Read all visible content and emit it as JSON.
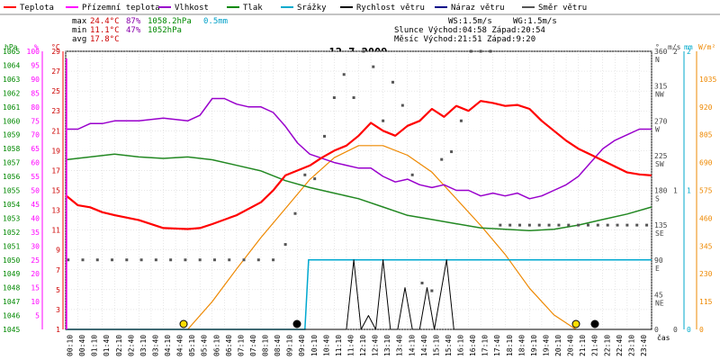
{
  "chart_data": {
    "type": "line",
    "title": "12.7.2009",
    "legend": [
      {
        "label": "Teplota",
        "color": "#ff0000"
      },
      {
        "label": "Přízemní teplota",
        "color": "#ff00ff"
      },
      {
        "label": "Vlhkost",
        "color": "#9900cc"
      },
      {
        "label": "Tlak",
        "color": "#008800"
      },
      {
        "label": "Srážky",
        "color": "#00aacc"
      },
      {
        "label": "Rychlost větru",
        "color": "#000000"
      },
      {
        "label": "Náraz větru",
        "color": "#000088"
      },
      {
        "label": "Směr větru",
        "color": "#555555"
      }
    ],
    "stats": {
      "max_label": "max",
      "max_temp": "24.4°C",
      "max_hum": "87%",
      "max_press": "1058.2hPa",
      "max_rain": "0.5mm",
      "min_label": "min",
      "min_temp": "11.1°C",
      "min_hum": "47%",
      "min_press": "1052hPa",
      "avg_label": "avg",
      "avg_temp": "17.8°C"
    },
    "wind_info": {
      "ws": "WS:1.5m/s",
      "wg": "WG:1.5m/s",
      "sun": "Slunce Východ:04:58  Západ:20:54",
      "moon": "Měsíc  Východ:21:51  Západ:9:20"
    },
    "axis_units": {
      "hpa": "hPa",
      "pct": "%",
      "degc": "°C",
      "deg": "°",
      "ms": "m/s",
      "mm": "mm",
      "wm2": "W/m²",
      "time": "čas"
    },
    "pressure_ticks": [
      "1045",
      "1046",
      "1047",
      "1048",
      "1049",
      "1050",
      "1051",
      "1052",
      "1053",
      "1054",
      "1055",
      "1056",
      "1057",
      "1058",
      "1059",
      "1060",
      "1061",
      "1062",
      "1063",
      "1064",
      "1065"
    ],
    "humidity_ticks": [
      "5",
      "10",
      "15",
      "20",
      "25",
      "30",
      "35",
      "40",
      "45",
      "50",
      "55",
      "60",
      "65",
      "70",
      "75",
      "80",
      "85",
      "90",
      "95",
      "100"
    ],
    "temp_ticks": [
      "1",
      "3",
      "5",
      "7",
      "9",
      "11",
      "13",
      "15",
      "17",
      "19",
      "21",
      "23",
      "25",
      "27",
      "29"
    ],
    "direction_ticks": [
      "0",
      "45",
      "90",
      "135",
      "180",
      "225",
      "270",
      "315",
      "360"
    ],
    "direction_labels": [
      "NE",
      "E",
      "SE",
      "S",
      "SW",
      "W",
      "NW",
      "N"
    ],
    "speed_ticks": [
      "0",
      "1",
      "2"
    ],
    "rain_ticks": [
      "0",
      "1",
      "2"
    ],
    "solar_ticks": [
      "0",
      "115",
      "230",
      "345",
      "460",
      "575",
      "690",
      "805",
      "920",
      "1035"
    ],
    "x_labels": [
      "00:10",
      "00:40",
      "01:10",
      "01:40",
      "02:10",
      "02:40",
      "03:10",
      "03:40",
      "04:10",
      "04:40",
      "05:10",
      "05:40",
      "06:10",
      "06:40",
      "07:10",
      "07:40",
      "08:10",
      "08:40",
      "09:10",
      "09:40",
      "10:10",
      "10:40",
      "11:10",
      "11:40",
      "12:10",
      "12:40",
      "13:10",
      "13:40",
      "14:10",
      "14:40",
      "15:10",
      "15:40",
      "16:10",
      "16:40",
      "17:10",
      "17:40",
      "18:10",
      "18:40",
      "19:10",
      "19:40",
      "20:10",
      "20:40",
      "21:10",
      "21:40",
      "22:10",
      "22:40",
      "23:10",
      "23:40"
    ],
    "temperature": {
      "hours": [
        0,
        0.5,
        1,
        1.5,
        2,
        3,
        4,
        5,
        5.5,
        6,
        7,
        8,
        8.5,
        9,
        9.5,
        10,
        10.5,
        11,
        11.5,
        12,
        12.5,
        13,
        13.5,
        14,
        14.5,
        15,
        15.5,
        16,
        16.5,
        17,
        17.5,
        18,
        18.5,
        19,
        19.5,
        20,
        20.5,
        21,
        21.5,
        22,
        22.5,
        23,
        23.5,
        24
      ],
      "values": [
        14.5,
        13.5,
        13.3,
        12.8,
        12.5,
        12.0,
        11.2,
        11.1,
        11.2,
        11.6,
        12.5,
        13.8,
        15,
        16.5,
        17,
        17.5,
        18.3,
        19,
        19.5,
        20.5,
        21.8,
        21,
        20.5,
        21.5,
        22,
        23.2,
        22.4,
        23.5,
        23,
        24.0,
        23.8,
        23.5,
        23.6,
        23.2,
        22,
        21,
        20,
        19.2,
        18.6,
        18,
        17.4,
        16.8,
        16.6,
        16.5
      ]
    },
    "humidity": {
      "hours": [
        0,
        0.5,
        1,
        1.5,
        2,
        3,
        4,
        5,
        5.5,
        6,
        6.5,
        7,
        7.5,
        8,
        8.5,
        9,
        9.5,
        10,
        11,
        12,
        12.5,
        13,
        13.5,
        14,
        14.5,
        15,
        15.5,
        16,
        16.5,
        17,
        17.5,
        18,
        18.5,
        19,
        19.5,
        20,
        20.5,
        21,
        21.5,
        22,
        22.5,
        23,
        23.5,
        24
      ],
      "values": [
        72,
        72,
        74,
        74,
        75,
        75,
        76,
        75,
        77,
        83,
        83,
        81,
        80,
        80,
        78,
        73,
        67,
        63,
        60,
        58,
        58,
        55,
        53,
        54,
        52,
        51,
        52,
        50,
        50,
        48,
        49,
        48,
        49,
        47,
        48,
        50,
        52,
        55,
        60,
        65,
        68,
        70,
        72,
        72
      ]
    },
    "pressure": {
      "hours": [
        0,
        1,
        2,
        3,
        4,
        5,
        6,
        7,
        8,
        9,
        10,
        11,
        12,
        13,
        14,
        15,
        16,
        17,
        18,
        19,
        20,
        21,
        22,
        23,
        24
      ],
      "values": [
        1057.2,
        1057.4,
        1057.6,
        1057.4,
        1057.3,
        1057.4,
        1057.2,
        1056.8,
        1056.4,
        1055.7,
        1055.2,
        1054.8,
        1054.4,
        1053.8,
        1053.2,
        1052.9,
        1052.6,
        1052.3,
        1052.2,
        1052.1,
        1052.2,
        1052.5,
        1052.9,
        1053.3,
        1053.8
      ]
    },
    "rain": {
      "hours": [
        0,
        9.8,
        9.95,
        24
      ],
      "values": [
        0,
        0,
        0.5,
        0.5
      ]
    },
    "solar": {
      "hours": [
        5,
        6,
        7,
        8,
        9,
        10,
        11,
        12,
        13,
        14,
        15,
        16,
        17,
        18,
        19,
        20,
        20.9
      ],
      "values": [
        0,
        115,
        250,
        380,
        500,
        620,
        710,
        760,
        760,
        720,
        650,
        540,
        430,
        310,
        170,
        60,
        0
      ]
    },
    "wind_speed": {
      "hours": [
        0,
        11.5,
        11.8,
        12.1,
        12.4,
        12.7,
        13.0,
        13.3,
        13.6,
        13.9,
        14.2,
        14.5,
        14.8,
        15.1,
        15.6,
        15.9,
        16.2,
        16.5,
        16.8,
        17.1,
        24
      ],
      "values": [
        0,
        0,
        0.5,
        0,
        0.1,
        0,
        0.5,
        0,
        0,
        0.3,
        0,
        0,
        0.3,
        0,
        0.5,
        0,
        0,
        0,
        0,
        0,
        0
      ]
    },
    "wind_direction": {
      "hours": [
        0.1,
        0.7,
        1.3,
        1.9,
        2.5,
        3.1,
        3.7,
        4.3,
        4.9,
        5.5,
        6.1,
        6.7,
        7.3,
        7.9,
        8.5,
        9.0,
        9.4,
        9.8,
        10.2,
        10.6,
        11.0,
        11.4,
        11.8,
        12.2,
        12.6,
        13.0,
        13.4,
        13.8,
        14.2,
        14.6,
        15.0,
        15.4,
        15.8,
        16.2,
        16.6,
        17.0,
        17.4,
        17.8,
        18.2,
        18.6,
        19.0,
        19.4,
        19.8,
        20.2,
        20.6,
        21.0,
        21.4,
        21.8,
        22.2,
        22.6,
        23.0,
        23.4,
        23.8
      ],
      "values": [
        90,
        90,
        90,
        90,
        90,
        90,
        90,
        90,
        90,
        90,
        90,
        90,
        90,
        90,
        90,
        110,
        150,
        200,
        195,
        250,
        300,
        330,
        300,
        360,
        340,
        270,
        320,
        290,
        200,
        60,
        50,
        220,
        230,
        270,
        360,
        360,
        360,
        135,
        135,
        135,
        135,
        135,
        135,
        135,
        135,
        135,
        135,
        135,
        135,
        135,
        135,
        135,
        135
      ]
    }
  }
}
